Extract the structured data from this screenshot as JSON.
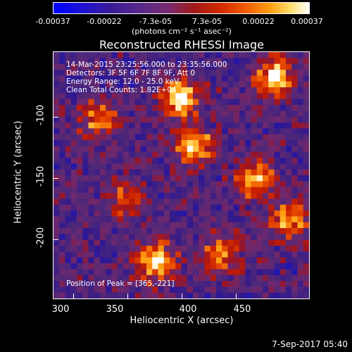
{
  "colorbar": {
    "ticks": [
      "-0.00037",
      "-0.00022",
      "-7.3e-05",
      "7.3e-05",
      "0.00022",
      "0.00037"
    ],
    "unit": "(photons cm⁻² s⁻¹ asec⁻²)",
    "range": [
      -0.00037,
      0.00037
    ]
  },
  "chart_data": {
    "type": "heatmap",
    "title": "Reconstructed RHESSI Image",
    "xlabel": "Heliocentric X (arcsec)",
    "ylabel": "Heliocentric Y (arcsec)",
    "x_ticks": [
      "300",
      "350",
      "400",
      "450"
    ],
    "y_ticks": [
      "-100",
      "-150",
      "-200"
    ],
    "xlim": [
      297,
      485
    ],
    "ylim": [
      -247,
      -66
    ],
    "annotations": [
      "14-Mar-2015 23:25:56.000 to 23:35:56.000",
      "Detectors: 3F 5F 6F 7F 8F 9F, Att 0",
      "Energy Range: 12.0 - 25.0 keV",
      "Clean     Total Counts: 1.82E+04"
    ],
    "peak_label": "Position of Peak = [365,-221]",
    "hot_spots": [
      {
        "x": 390,
        "y": -100,
        "v": 1.0
      },
      {
        "x": 400,
        "y": -135,
        "v": 0.95
      },
      {
        "x": 372,
        "y": -220,
        "v": 1.0
      },
      {
        "x": 460,
        "y": -85,
        "v": 0.9
      },
      {
        "x": 445,
        "y": -160,
        "v": 0.85
      },
      {
        "x": 330,
        "y": -115,
        "v": 0.7
      },
      {
        "x": 420,
        "y": -215,
        "v": 0.75
      },
      {
        "x": 470,
        "y": -190,
        "v": 0.7
      },
      {
        "x": 350,
        "y": -175,
        "v": 0.55
      }
    ]
  },
  "footer": {
    "timestamp": "7-Sep-2017 05:40"
  }
}
